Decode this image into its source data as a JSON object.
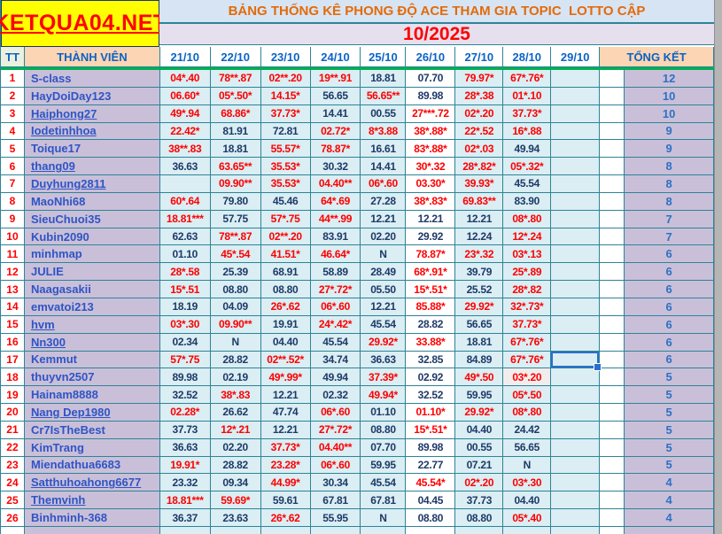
{
  "brand": "KETQUA04.NET",
  "title": "BẢNG THỐNG KÊ PHONG ĐỘ ACE THAM GIA TOPIC  LOTTO CẬP",
  "month": "10/2025",
  "columns": {
    "tt": "TT",
    "member": "THÀNH VIÊN",
    "dates": [
      "21/10",
      "22/10",
      "23/10",
      "24/10",
      "25/10",
      "26/10",
      "27/10",
      "28/10",
      "29/10"
    ],
    "total": "TỔNG KẾT"
  },
  "selection": {
    "row_tt": "17",
    "date": "29/10"
  },
  "colors": {
    "brand_red": "#ff0000",
    "logo_yellow": "#ffff00",
    "title_orange": "#e26b0a",
    "title_band_bg": "#d7e4f3",
    "month_band_bg": "#e6e0ee",
    "month_red": "#ff0000",
    "header_blue": "#0b63c5",
    "peach": "#fcd5b4",
    "tt_header_bg": "#ebf1de",
    "cyan_cell": "#daeef3",
    "lavender_cell": "#cabfd9",
    "grid_teal": "#2e8398",
    "green_line": "#00b050",
    "value_red": "#ff0000",
    "value_dark": "#1e3a68",
    "name_blue": "#2e55c4",
    "total_blue": "#2d71c2",
    "selection_blue": "#2a6fce",
    "special_cell_bg": "#f1eded",
    "grey_edge": "#b5b5b5"
  },
  "rows": [
    {
      "tt": "1",
      "name": "S-class",
      "u": 0,
      "cells": [
        [
          "04*.40",
          1
        ],
        [
          "78**.87",
          1
        ],
        [
          "02**.20",
          1
        ],
        [
          "19**.91",
          1
        ],
        [
          "18.81",
          0
        ],
        [
          "07.70",
          0
        ],
        [
          "79.97*",
          1
        ],
        [
          "67*.76*",
          1
        ]
      ],
      "total": "12"
    },
    {
      "tt": "2",
      "name": "HayDoiDay123",
      "u": 0,
      "cells": [
        [
          "06.60*",
          1
        ],
        [
          "05*.50*",
          1
        ],
        [
          "14.15*",
          1
        ],
        [
          "56.65",
          0
        ],
        [
          "56.65**",
          1
        ],
        [
          "89.98",
          0
        ],
        [
          "28*.38",
          1
        ],
        [
          "01*.10",
          1
        ]
      ],
      "total": "10"
    },
    {
      "tt": "3",
      "name": "Haiphong27",
      "u": 1,
      "cells": [
        [
          "49*.94",
          1
        ],
        [
          "68.86*",
          1
        ],
        [
          "37.73*",
          1
        ],
        [
          "14.41",
          0
        ],
        [
          "00.55",
          0
        ],
        [
          "27***.72",
          1
        ],
        [
          "02*.20",
          1
        ],
        [
          "37.73*",
          1
        ]
      ],
      "total": "10"
    },
    {
      "tt": "4",
      "name": "Iodetinhhoa",
      "u": 1,
      "cells": [
        [
          "22.42*",
          1
        ],
        [
          "81.91",
          0
        ],
        [
          "72.81",
          0
        ],
        [
          "02.72*",
          1
        ],
        [
          "8*3.88",
          1
        ],
        [
          "38*.88*",
          1
        ],
        [
          "22*.52",
          1
        ],
        [
          "16*.88",
          1
        ]
      ],
      "total": "9"
    },
    {
      "tt": "5",
      "name": "Toique17",
      "u": 0,
      "cells": [
        [
          "38**.83",
          1
        ],
        [
          "18.81",
          0
        ],
        [
          "55.57*",
          1
        ],
        [
          "78.87*",
          1
        ],
        [
          "16.61",
          0
        ],
        [
          "83*.88*",
          1
        ],
        [
          "02*.03",
          1
        ],
        [
          "49.94",
          0
        ]
      ],
      "total": "9"
    },
    {
      "tt": "6",
      "name": "thang09",
      "u": 1,
      "cells": [
        [
          "36.63",
          0
        ],
        [
          "63.65**",
          1
        ],
        [
          "35.53*",
          1
        ],
        [
          "30.32",
          0
        ],
        [
          "14.41",
          0
        ],
        [
          "30*.32",
          1
        ],
        [
          "28*.82*",
          1
        ],
        [
          "05*.32*",
          1
        ]
      ],
      "total": "8"
    },
    {
      "tt": "7",
      "name": "Duyhung2811",
      "u": 1,
      "cells": [
        [
          "",
          0
        ],
        [
          "09.90**",
          1
        ],
        [
          "35.53*",
          1
        ],
        [
          "04.40**",
          1
        ],
        [
          "06*.60",
          1
        ],
        [
          "03.30*",
          1
        ],
        [
          "39.93*",
          1
        ],
        [
          "45.54",
          0
        ]
      ],
      "total": "8"
    },
    {
      "tt": "8",
      "name": "MaoNhi68",
      "u": 0,
      "cells": [
        [
          "60*.64",
          1
        ],
        [
          "79.80",
          0
        ],
        [
          "45.46",
          0
        ],
        [
          "64*.69",
          1
        ],
        [
          "27.28",
          0
        ],
        [
          "38*.83*",
          1
        ],
        [
          "69.83**",
          1
        ],
        [
          "83.90",
          0
        ]
      ],
      "total": "8"
    },
    {
      "tt": "9",
      "name": "SieuChuoi35",
      "u": 0,
      "cells": [
        [
          "18.81***",
          1
        ],
        [
          "57.75",
          0
        ],
        [
          "57*.75",
          1
        ],
        [
          "44**.99",
          1
        ],
        [
          "12.21",
          0
        ],
        [
          "12.21",
          0
        ],
        [
          "12.21",
          0
        ],
        [
          "08*.80",
          1
        ]
      ],
      "total": "7"
    },
    {
      "tt": "10",
      "name": "Kubin2090",
      "u": 0,
      "cells": [
        [
          "62.63",
          0
        ],
        [
          "78**.87",
          1
        ],
        [
          "02**.20",
          1
        ],
        [
          "83.91",
          0
        ],
        [
          "02.20",
          0
        ],
        [
          "29.92",
          0
        ],
        [
          "12.24",
          0
        ],
        [
          "12*.24",
          1
        ]
      ],
      "total": "7"
    },
    {
      "tt": "11",
      "name": "minhmap",
      "u": 0,
      "cells": [
        [
          "01.10",
          0
        ],
        [
          "45*.54",
          1
        ],
        [
          "41.51*",
          1
        ],
        [
          "46.64*",
          1
        ],
        [
          "N",
          0
        ],
        [
          "78.87*",
          1
        ],
        [
          "23*.32",
          1
        ],
        [
          "03*.13",
          1
        ]
      ],
      "total": "6"
    },
    {
      "tt": "12",
      "name": "JULIE",
      "u": 0,
      "cells": [
        [
          "28*.58",
          1
        ],
        [
          "25.39",
          0
        ],
        [
          "68.91",
          0
        ],
        [
          "58.89",
          0
        ],
        [
          "28.49",
          0
        ],
        [
          "68*.91*",
          1
        ],
        [
          "39.79",
          0
        ],
        [
          "25*.89",
          1
        ]
      ],
      "total": "6"
    },
    {
      "tt": "13",
      "name": "Naagasakii",
      "u": 0,
      "cells": [
        [
          "15*.51",
          1
        ],
        [
          "08.80",
          0
        ],
        [
          "08.80",
          0
        ],
        [
          "27*.72*",
          1
        ],
        [
          "05.50",
          0
        ],
        [
          "15*.51*",
          1
        ],
        [
          "25.52",
          0
        ],
        [
          "28*.82",
          1
        ]
      ],
      "total": "6"
    },
    {
      "tt": "14",
      "name": "emvatoi213",
      "u": 0,
      "cells": [
        [
          "18.19",
          0
        ],
        [
          "04.09",
          0
        ],
        [
          "26*.62",
          1
        ],
        [
          "06*.60",
          1
        ],
        [
          "12.21",
          0
        ],
        [
          "85.88*",
          1
        ],
        [
          "29.92*",
          1
        ],
        [
          "32*.73*",
          1
        ]
      ],
      "total": "6"
    },
    {
      "tt": "15",
      "name": "hvm",
      "u": 1,
      "cells": [
        [
          "03*.30",
          1
        ],
        [
          "09.90**",
          1
        ],
        [
          "19.91",
          0
        ],
        [
          "24*.42*",
          1
        ],
        [
          "45.54",
          0
        ],
        [
          "28.82",
          0
        ],
        [
          "56.65",
          0
        ],
        [
          "37.73*",
          1
        ]
      ],
      "total": "6"
    },
    {
      "tt": "16",
      "name": "Nn300",
      "u": 1,
      "cells": [
        [
          "02.34",
          0
        ],
        [
          "N",
          0
        ],
        [
          "04.40",
          0
        ],
        [
          "45.54",
          0
        ],
        [
          "29.92*",
          1
        ],
        [
          "33.88*",
          1
        ],
        [
          "18.81",
          0
        ],
        [
          "67*.76*",
          1
        ]
      ],
      "total": "6"
    },
    {
      "tt": "17",
      "name": "Kemmut",
      "u": 0,
      "cells": [
        [
          "57*.75",
          1
        ],
        [
          "28.82",
          0
        ],
        [
          "02**.52*",
          1
        ],
        [
          "34.74",
          0
        ],
        [
          "36.63",
          0
        ],
        [
          "32.85",
          0
        ],
        [
          "84.89",
          0
        ],
        [
          "67*.76*",
          1
        ]
      ],
      "total": "6"
    },
    {
      "tt": "18",
      "name": "thuyvn2507",
      "u": 0,
      "cells": [
        [
          "89.98",
          0
        ],
        [
          "02.19",
          0
        ],
        [
          "49*.99*",
          1
        ],
        [
          "49.94",
          0
        ],
        [
          "37.39*",
          1
        ],
        [
          "02.92",
          0
        ],
        [
          "49*.50",
          1
        ],
        [
          "03*.20",
          1,
          "grey"
        ]
      ],
      "total": "5"
    },
    {
      "tt": "19",
      "name": "Hainam8888",
      "u": 0,
      "cells": [
        [
          "32.52",
          0
        ],
        [
          "38*.83",
          1
        ],
        [
          "12.21",
          0
        ],
        [
          "02.32",
          0
        ],
        [
          "49.94*",
          1
        ],
        [
          "32.52",
          0
        ],
        [
          "59.95",
          0
        ],
        [
          "05*.50",
          1
        ]
      ],
      "total": "5"
    },
    {
      "tt": "20",
      "name": "Nang Dep1980",
      "u": 1,
      "cells": [
        [
          "02.28*",
          1
        ],
        [
          "26.62",
          0
        ],
        [
          "47.74",
          0
        ],
        [
          "06*.60",
          1
        ],
        [
          "01.10",
          0
        ],
        [
          "01.10*",
          1
        ],
        [
          "29.92*",
          1
        ],
        [
          "08*.80",
          1
        ]
      ],
      "total": "5"
    },
    {
      "tt": "21",
      "name": "Cr7IsTheBest",
      "u": 0,
      "cells": [
        [
          "37.73",
          0
        ],
        [
          "12*.21",
          1
        ],
        [
          "12.21",
          0
        ],
        [
          "27*.72*",
          1
        ],
        [
          "08.80",
          0
        ],
        [
          "15*.51*",
          1
        ],
        [
          "04.40",
          0
        ],
        [
          "24.42",
          0
        ]
      ],
      "total": "5"
    },
    {
      "tt": "22",
      "name": "KimTrang",
      "u": 0,
      "cells": [
        [
          "36.63",
          0
        ],
        [
          "02.20",
          0
        ],
        [
          "37.73*",
          1
        ],
        [
          "04.40**",
          1
        ],
        [
          "07.70",
          0
        ],
        [
          "89.98",
          0
        ],
        [
          "00.55",
          0
        ],
        [
          "56.65",
          0
        ]
      ],
      "total": "5"
    },
    {
      "tt": "23",
      "name": "Miendathua6683",
      "u": 0,
      "cells": [
        [
          "19.91*",
          1
        ],
        [
          "28.82",
          0
        ],
        [
          "23.28*",
          1
        ],
        [
          "06*.60",
          1
        ],
        [
          "59.95",
          0
        ],
        [
          "22.77",
          0
        ],
        [
          "07.21",
          0
        ],
        [
          "N",
          0
        ]
      ],
      "total": "5"
    },
    {
      "tt": "24",
      "name": "Satthuhoahong6677",
      "u": 1,
      "cells": [
        [
          "23.32",
          0
        ],
        [
          "09.34",
          0
        ],
        [
          "44.99*",
          1
        ],
        [
          "30.34",
          0
        ],
        [
          "45.54",
          0
        ],
        [
          "45.54*",
          1
        ],
        [
          "02*.20",
          1
        ],
        [
          "03*.30",
          1
        ]
      ],
      "total": "4"
    },
    {
      "tt": "25",
      "name": "Themvinh",
      "u": 1,
      "cells": [
        [
          "18.81***",
          1
        ],
        [
          "59.69*",
          1
        ],
        [
          "59.61",
          0
        ],
        [
          "67.81",
          0
        ],
        [
          "67.81",
          0
        ],
        [
          "04.45",
          0
        ],
        [
          "37.73",
          0
        ],
        [
          "04.40",
          0
        ]
      ],
      "total": "4"
    },
    {
      "tt": "26",
      "name": "Binhminh-368",
      "u": 0,
      "cells": [
        [
          "36.37",
          0
        ],
        [
          "23.63",
          0
        ],
        [
          "26*.62",
          1
        ],
        [
          "55.95",
          0
        ],
        [
          "N",
          0
        ],
        [
          "08.80",
          0
        ],
        [
          "08.80",
          0
        ],
        [
          "05*.40",
          1
        ]
      ],
      "total": "4"
    }
  ]
}
